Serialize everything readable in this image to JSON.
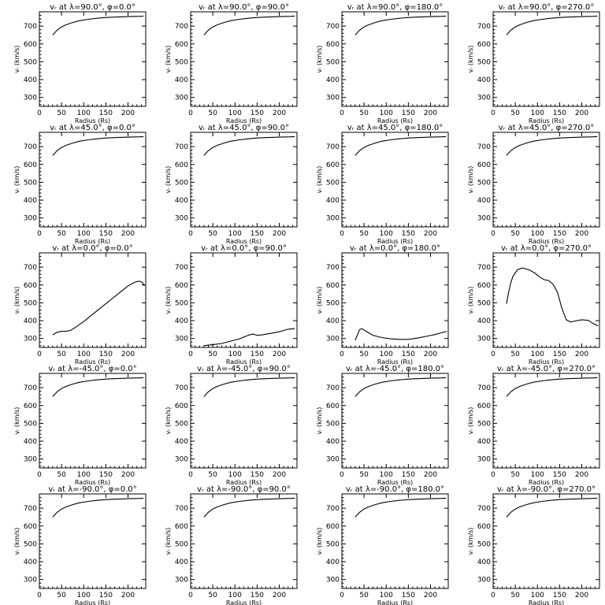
{
  "figure": {
    "panel_titles": [
      "vᵣ at λ=90.0°, φ=0.0°",
      "vᵣ at λ=90.0°, φ=90.0°",
      "vᵣ at λ=90.0°, φ=180.0°",
      "vᵣ at λ=90.0°, φ=270.0°",
      "vᵣ at λ=45.0°, φ=0.0°",
      "vᵣ at λ=45.0°, φ=90.0°",
      "vᵣ at λ=45.0°, φ=180.0°",
      "vᵣ at λ=45.0°, φ=270.0°",
      "vᵣ at λ=0.0°, φ=0.0°",
      "vᵣ at λ=0.0°, φ=90.0°",
      "vᵣ at λ=0.0°, φ=180.0°",
      "vᵣ at λ=0.0°, φ=270.0°",
      "vᵣ at λ=-45.0°, φ=0.0°",
      "vᵣ at λ=-45.0°, φ=90.0°",
      "vᵣ at λ=-45.0°, φ=180.0°",
      "vᵣ at λ=-45.0°, φ=270.0°",
      "vᵣ at λ=-90.0°, φ=0.0°",
      "vᵣ at λ=-90.0°, φ=90.0°",
      "vᵣ at λ=-90.0°, φ=180.0°",
      "vᵣ at λ=-90.0°, φ=270.0°"
    ]
  },
  "chart_data": [
    {
      "type": "line",
      "title": "vᵣ at λ=90.0°, φ=0.0°",
      "xlabel": "Radius (Rs)",
      "ylabel": "vᵣ (km/s)",
      "xlim": [
        0,
        240
      ],
      "ylim": [
        250,
        780
      ],
      "xticks": [
        0,
        50,
        100,
        150,
        200
      ],
      "yticks": [
        300,
        400,
        500,
        600,
        700
      ],
      "x": [
        30,
        40,
        50,
        60,
        75,
        90,
        110,
        130,
        150,
        175,
        200,
        225,
        235
      ],
      "y": [
        650,
        677,
        695,
        707,
        720,
        730,
        738,
        744,
        748,
        751,
        753,
        755,
        756
      ]
    },
    {
      "type": "line",
      "title": "vᵣ at λ=90.0°, φ=90.0°",
      "xlabel": "Radius (Rs)",
      "ylabel": "vᵣ (km/s)",
      "xlim": [
        0,
        240
      ],
      "ylim": [
        250,
        780
      ],
      "xticks": [
        0,
        50,
        100,
        150,
        200
      ],
      "yticks": [
        300,
        400,
        500,
        600,
        700
      ],
      "x": [
        30,
        40,
        50,
        60,
        75,
        90,
        110,
        130,
        150,
        175,
        200,
        225,
        235
      ],
      "y": [
        650,
        677,
        695,
        707,
        720,
        730,
        738,
        744,
        748,
        751,
        753,
        755,
        756
      ]
    },
    {
      "type": "line",
      "title": "vᵣ at λ=90.0°, φ=180.0°",
      "xlabel": "Radius (Rs)",
      "ylabel": "vᵣ (km/s)",
      "xlim": [
        0,
        240
      ],
      "ylim": [
        250,
        780
      ],
      "xticks": [
        0,
        50,
        100,
        150,
        200
      ],
      "yticks": [
        300,
        400,
        500,
        600,
        700
      ],
      "x": [
        30,
        40,
        50,
        60,
        75,
        90,
        110,
        130,
        150,
        175,
        200,
        225,
        235
      ],
      "y": [
        650,
        677,
        695,
        707,
        720,
        730,
        738,
        744,
        748,
        751,
        753,
        755,
        756
      ]
    },
    {
      "type": "line",
      "title": "vᵣ at λ=90.0°, φ=270.0°",
      "xlabel": "Radius (Rs)",
      "ylabel": "vᵣ (km/s)",
      "xlim": [
        0,
        240
      ],
      "ylim": [
        250,
        780
      ],
      "xticks": [
        0,
        50,
        100,
        150,
        200
      ],
      "yticks": [
        300,
        400,
        500,
        600,
        700
      ],
      "x": [
        30,
        40,
        50,
        60,
        75,
        90,
        110,
        130,
        150,
        175,
        200,
        225,
        235
      ],
      "y": [
        650,
        677,
        695,
        707,
        720,
        730,
        738,
        744,
        748,
        751,
        753,
        755,
        756
      ]
    },
    {
      "type": "line",
      "title": "vᵣ at λ=45.0°, φ=0.0°",
      "xlabel": "Radius (Rs)",
      "ylabel": "vᵣ (km/s)",
      "xlim": [
        0,
        240
      ],
      "ylim": [
        250,
        780
      ],
      "xticks": [
        0,
        50,
        100,
        150,
        200
      ],
      "yticks": [
        300,
        400,
        500,
        600,
        700
      ],
      "x": [
        30,
        40,
        50,
        60,
        75,
        90,
        110,
        130,
        150,
        175,
        200,
        225,
        235
      ],
      "y": [
        650,
        677,
        695,
        707,
        720,
        730,
        738,
        744,
        748,
        751,
        753,
        755,
        756
      ]
    },
    {
      "type": "line",
      "title": "vᵣ at λ=45.0°, φ=90.0°",
      "xlabel": "Radius (Rs)",
      "ylabel": "vᵣ (km/s)",
      "xlim": [
        0,
        240
      ],
      "ylim": [
        250,
        780
      ],
      "xticks": [
        0,
        50,
        100,
        150,
        200
      ],
      "yticks": [
        300,
        400,
        500,
        600,
        700
      ],
      "x": [
        30,
        40,
        50,
        60,
        75,
        90,
        110,
        130,
        150,
        175,
        200,
        225,
        235
      ],
      "y": [
        650,
        677,
        695,
        707,
        720,
        730,
        738,
        744,
        748,
        751,
        753,
        755,
        756
      ]
    },
    {
      "type": "line",
      "title": "vᵣ at λ=45.0°, φ=180.0°",
      "xlabel": "Radius (Rs)",
      "ylabel": "vᵣ (km/s)",
      "xlim": [
        0,
        240
      ],
      "ylim": [
        250,
        780
      ],
      "xticks": [
        0,
        50,
        100,
        150,
        200
      ],
      "yticks": [
        300,
        400,
        500,
        600,
        700
      ],
      "x": [
        30,
        40,
        50,
        60,
        75,
        90,
        110,
        130,
        150,
        175,
        200,
        225,
        235
      ],
      "y": [
        650,
        677,
        695,
        707,
        720,
        730,
        738,
        744,
        748,
        751,
        753,
        755,
        756
      ]
    },
    {
      "type": "line",
      "title": "vᵣ at λ=45.0°, φ=270.0°",
      "xlabel": "Radius (Rs)",
      "ylabel": "vᵣ (km/s)",
      "xlim": [
        0,
        240
      ],
      "ylim": [
        250,
        780
      ],
      "xticks": [
        0,
        50,
        100,
        150,
        200
      ],
      "yticks": [
        300,
        400,
        500,
        600,
        700
      ],
      "x": [
        30,
        40,
        50,
        60,
        75,
        90,
        110,
        130,
        150,
        175,
        200,
        225,
        235
      ],
      "y": [
        650,
        677,
        695,
        707,
        720,
        730,
        738,
        744,
        748,
        751,
        753,
        755,
        756
      ]
    },
    {
      "type": "line",
      "title": "vᵣ at λ=0.0°, φ=0.0°",
      "xlabel": "Radius (Rs)",
      "ylabel": "vᵣ (km/s)",
      "xlim": [
        0,
        240
      ],
      "ylim": [
        250,
        780
      ],
      "xticks": [
        0,
        50,
        100,
        150,
        200
      ],
      "yticks": [
        300,
        400,
        500,
        600,
        700
      ],
      "x": [
        30,
        40,
        50,
        60,
        70,
        80,
        100,
        120,
        140,
        160,
        180,
        200,
        215,
        225,
        232,
        237
      ],
      "y": [
        320,
        335,
        340,
        340,
        345,
        360,
        395,
        435,
        475,
        515,
        555,
        595,
        615,
        622,
        615,
        595
      ]
    },
    {
      "type": "line",
      "title": "vᵣ at λ=0.0°, φ=90.0°",
      "xlabel": "Radius (Rs)",
      "ylabel": "vᵣ (km/s)",
      "xlim": [
        0,
        240
      ],
      "ylim": [
        250,
        780
      ],
      "xticks": [
        0,
        50,
        100,
        150,
        200
      ],
      "yticks": [
        300,
        400,
        500,
        600,
        700
      ],
      "x": [
        30,
        50,
        70,
        90,
        110,
        130,
        140,
        150,
        160,
        180,
        200,
        220,
        235
      ],
      "y": [
        260,
        265,
        272,
        285,
        298,
        318,
        325,
        318,
        320,
        328,
        338,
        352,
        355
      ]
    },
    {
      "type": "line",
      "title": "vᵣ at λ=0.0°, φ=180.0°",
      "xlabel": "Radius (Rs)",
      "ylabel": "vᵣ (km/s)",
      "xlim": [
        0,
        240
      ],
      "ylim": [
        250,
        780
      ],
      "xticks": [
        0,
        50,
        100,
        150,
        200
      ],
      "yticks": [
        300,
        400,
        500,
        600,
        700
      ],
      "x": [
        30,
        35,
        40,
        45,
        55,
        70,
        90,
        110,
        130,
        150,
        170,
        190,
        210,
        225,
        237
      ],
      "y": [
        290,
        320,
        350,
        355,
        340,
        318,
        305,
        298,
        295,
        295,
        302,
        312,
        322,
        332,
        340
      ]
    },
    {
      "type": "line",
      "title": "vᵣ at λ=0.0°, φ=270.0°",
      "xlabel": "Radius (Rs)",
      "ylabel": "vᵣ (km/s)",
      "xlim": [
        0,
        240
      ],
      "ylim": [
        250,
        780
      ],
      "xticks": [
        0,
        50,
        100,
        150,
        200
      ],
      "yticks": [
        300,
        400,
        500,
        600,
        700
      ],
      "x": [
        30,
        35,
        40,
        45,
        55,
        65,
        75,
        85,
        95,
        105,
        115,
        125,
        135,
        145,
        155,
        165,
        175,
        185,
        200,
        215,
        225,
        237
      ],
      "y": [
        495,
        560,
        615,
        650,
        685,
        695,
        690,
        680,
        665,
        645,
        630,
        625,
        605,
        560,
        470,
        405,
        392,
        398,
        405,
        402,
        385,
        370
      ]
    },
    {
      "type": "line",
      "title": "vᵣ at λ=-45.0°, φ=0.0°",
      "xlabel": "Radius (Rs)",
      "ylabel": "vᵣ (km/s)",
      "xlim": [
        0,
        240
      ],
      "ylim": [
        250,
        780
      ],
      "xticks": [
        0,
        50,
        100,
        150,
        200
      ],
      "yticks": [
        300,
        400,
        500,
        600,
        700
      ],
      "x": [
        30,
        40,
        50,
        60,
        75,
        90,
        110,
        130,
        150,
        175,
        200,
        225,
        235
      ],
      "y": [
        650,
        677,
        695,
        707,
        720,
        730,
        738,
        744,
        748,
        751,
        753,
        755,
        756
      ]
    },
    {
      "type": "line",
      "title": "vᵣ at λ=-45.0°, φ=90.0°",
      "xlabel": "Radius (Rs)",
      "ylabel": "vᵣ (km/s)",
      "xlim": [
        0,
        240
      ],
      "ylim": [
        250,
        780
      ],
      "xticks": [
        0,
        50,
        100,
        150,
        200
      ],
      "yticks": [
        300,
        400,
        500,
        600,
        700
      ],
      "x": [
        30,
        40,
        50,
        60,
        75,
        90,
        110,
        130,
        150,
        175,
        200,
        225,
        235
      ],
      "y": [
        650,
        677,
        695,
        707,
        720,
        730,
        738,
        744,
        748,
        751,
        753,
        755,
        756
      ]
    },
    {
      "type": "line",
      "title": "vᵣ at λ=-45.0°, φ=180.0°",
      "xlabel": "Radius (Rs)",
      "ylabel": "vᵣ (km/s)",
      "xlim": [
        0,
        240
      ],
      "ylim": [
        250,
        780
      ],
      "xticks": [
        0,
        50,
        100,
        150,
        200
      ],
      "yticks": [
        300,
        400,
        500,
        600,
        700
      ],
      "x": [
        30,
        40,
        50,
        60,
        75,
        90,
        110,
        130,
        150,
        175,
        200,
        225,
        235
      ],
      "y": [
        650,
        677,
        695,
        707,
        720,
        730,
        738,
        744,
        748,
        751,
        753,
        755,
        756
      ]
    },
    {
      "type": "line",
      "title": "vᵣ at λ=-45.0°, φ=270.0°",
      "xlabel": "Radius (Rs)",
      "ylabel": "vᵣ (km/s)",
      "xlim": [
        0,
        240
      ],
      "ylim": [
        250,
        780
      ],
      "xticks": [
        0,
        50,
        100,
        150,
        200
      ],
      "yticks": [
        300,
        400,
        500,
        600,
        700
      ],
      "x": [
        30,
        40,
        50,
        60,
        75,
        90,
        110,
        130,
        150,
        175,
        200,
        225,
        235
      ],
      "y": [
        650,
        677,
        695,
        707,
        720,
        730,
        738,
        744,
        748,
        751,
        753,
        755,
        756
      ]
    },
    {
      "type": "line",
      "title": "vᵣ at λ=-90.0°, φ=0.0°",
      "xlabel": "Radius (Rs)",
      "ylabel": "vᵣ (km/s)",
      "xlim": [
        0,
        240
      ],
      "ylim": [
        250,
        780
      ],
      "xticks": [
        0,
        50,
        100,
        150,
        200
      ],
      "yticks": [
        300,
        400,
        500,
        600,
        700
      ],
      "x": [
        30,
        40,
        50,
        60,
        75,
        90,
        110,
        130,
        150,
        175,
        200,
        225,
        235
      ],
      "y": [
        650,
        677,
        695,
        707,
        720,
        730,
        738,
        744,
        748,
        751,
        753,
        755,
        756
      ]
    },
    {
      "type": "line",
      "title": "vᵣ at λ=-90.0°, φ=90.0°",
      "xlabel": "Radius (Rs)",
      "ylabel": "vᵣ (km/s)",
      "xlim": [
        0,
        240
      ],
      "ylim": [
        250,
        780
      ],
      "xticks": [
        0,
        50,
        100,
        150,
        200
      ],
      "yticks": [
        300,
        400,
        500,
        600,
        700
      ],
      "x": [
        30,
        40,
        50,
        60,
        75,
        90,
        110,
        130,
        150,
        175,
        200,
        225,
        235
      ],
      "y": [
        650,
        677,
        695,
        707,
        720,
        730,
        738,
        744,
        748,
        751,
        753,
        755,
        756
      ]
    },
    {
      "type": "line",
      "title": "vᵣ at λ=-90.0°, φ=180.0°",
      "xlabel": "Radius (Rs)",
      "ylabel": "vᵣ (km/s)",
      "xlim": [
        0,
        240
      ],
      "ylim": [
        250,
        780
      ],
      "xticks": [
        0,
        50,
        100,
        150,
        200
      ],
      "yticks": [
        300,
        400,
        500,
        600,
        700
      ],
      "x": [
        30,
        40,
        50,
        60,
        75,
        90,
        110,
        130,
        150,
        175,
        200,
        225,
        235
      ],
      "y": [
        650,
        677,
        695,
        707,
        720,
        730,
        738,
        744,
        748,
        751,
        753,
        755,
        756
      ]
    },
    {
      "type": "line",
      "title": "vᵣ at λ=-90.0°, φ=270.0°",
      "xlabel": "Radius (Rs)",
      "ylabel": "vᵣ (km/s)",
      "xlim": [
        0,
        240
      ],
      "ylim": [
        250,
        780
      ],
      "xticks": [
        0,
        50,
        100,
        150,
        200
      ],
      "yticks": [
        300,
        400,
        500,
        600,
        700
      ],
      "x": [
        30,
        40,
        50,
        60,
        75,
        90,
        110,
        130,
        150,
        175,
        200,
        225,
        235
      ],
      "y": [
        650,
        677,
        695,
        707,
        720,
        730,
        738,
        744,
        748,
        751,
        753,
        755,
        756
      ]
    }
  ]
}
